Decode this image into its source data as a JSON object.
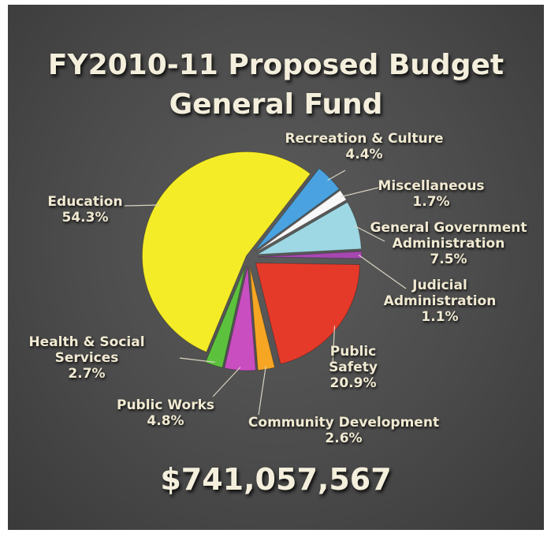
{
  "title_line1": "FY2010-11 Proposed Budget",
  "title_line2": "General Fund",
  "total": "$741,057,567",
  "chart_data": {
    "type": "pie",
    "slices": [
      {
        "name": "Recreation & Culture",
        "value": 4.4,
        "label_pct": "4.4%",
        "color": "#4aa3e0"
      },
      {
        "name": "Miscellaneous",
        "value": 1.7,
        "label_pct": "1.7%",
        "color": "#f8f8f8"
      },
      {
        "name": "General Government Administration",
        "value": 7.5,
        "label_pct": "7.5%",
        "color": "#9ed8e4"
      },
      {
        "name": "Judicial Administration",
        "value": 1.1,
        "label_pct": "1.1%",
        "color": "#a648b0"
      },
      {
        "name": "Public Safety",
        "value": 20.9,
        "label_pct": "20.9%",
        "color": "#e53a2a"
      },
      {
        "name": "Community Development",
        "value": 2.6,
        "label_pct": "2.6%",
        "color": "#f6a623"
      },
      {
        "name": "Public Works",
        "value": 4.8,
        "label_pct": "4.8%",
        "color": "#c94ec0"
      },
      {
        "name": "Health & Social Services",
        "value": 2.7,
        "label_pct": "2.7%",
        "color": "#5cc23d"
      },
      {
        "name": "Education",
        "value": 54.3,
        "label_pct": "54.3%",
        "color": "#f5ec28"
      }
    ]
  },
  "labels": {
    "recreation": {
      "line1": "Recreation & Culture"
    },
    "miscellaneous": {
      "line1": "Miscellaneous"
    },
    "general_gov": {
      "line1": "General Government",
      "line2": "Administration"
    },
    "judicial": {
      "line1": "Judicial",
      "line2": "Administration"
    },
    "public_safety": {
      "line1": "Public",
      "line2": "Safety"
    },
    "community": {
      "line1": "Community Development"
    },
    "public_works": {
      "line1": "Public Works"
    },
    "health": {
      "line1": "Health & Social",
      "line2": "Services"
    },
    "education": {
      "line1": "Education"
    }
  }
}
